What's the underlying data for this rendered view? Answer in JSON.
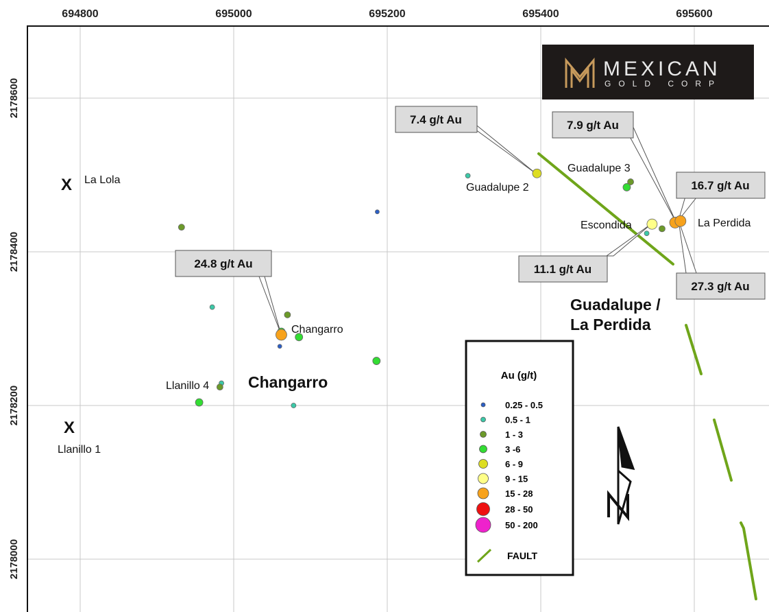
{
  "axes": {
    "x_ticks": [
      "694800",
      "695000",
      "695200",
      "695400",
      "695600"
    ],
    "y_ticks": [
      "2178600",
      "2178400",
      "2178200",
      "2178000"
    ]
  },
  "logo": {
    "word1": "MEXICAN",
    "word2": "GOLD CORP",
    "bg": "#1e1a19",
    "accent": "#c79a5c"
  },
  "area_labels": [
    {
      "key": "changarro_area",
      "text": "Changarro"
    },
    {
      "key": "guadalupe_area_1",
      "text": "Guadalupe /"
    },
    {
      "key": "guadalupe_area_2",
      "text": "La Perdida"
    }
  ],
  "place_labels": [
    {
      "key": "la_lola",
      "text": "La Lola"
    },
    {
      "key": "llanillo_1",
      "text": "Llanillo 1"
    },
    {
      "key": "llanillo_4",
      "text": "Llanillo 4"
    },
    {
      "key": "changarro",
      "text": "Changarro"
    },
    {
      "key": "guadalupe_2",
      "text": "Guadalupe 2"
    },
    {
      "key": "guadalupe_3",
      "text": "Guadalupe 3"
    },
    {
      "key": "escondida",
      "text": "Escondida"
    },
    {
      "key": "la_perdida",
      "text": "La Perdida"
    }
  ],
  "historic_markers": [
    "X",
    "X"
  ],
  "callouts": [
    {
      "key": "c248",
      "text": "24.8 g/t Au"
    },
    {
      "key": "c74",
      "text": "7.4 g/t Au"
    },
    {
      "key": "c79",
      "text": "7.9 g/t Au"
    },
    {
      "key": "c167",
      "text": "16.7 g/t Au"
    },
    {
      "key": "c111",
      "text": "11.1 g/t Au"
    },
    {
      "key": "c273",
      "text": "27.3 g/t Au"
    }
  ],
  "legend": {
    "title": "Au (g/t)",
    "items": [
      {
        "label": "0.25 - 0.5",
        "color": "#2b5fc7"
      },
      {
        "label": "0.5 - 1",
        "color": "#3cc9a8"
      },
      {
        "label": "1 - 3",
        "color": "#6c9a2a"
      },
      {
        "label": "3 -6",
        "color": "#33dd33"
      },
      {
        "label": "6 - 9",
        "color": "#dddd22"
      },
      {
        "label": "9 - 15",
        "color": "#ffff88"
      },
      {
        "label": "15 - 28",
        "color": "#f7a21c"
      },
      {
        "label": "28 - 50",
        "color": "#ee1111"
      },
      {
        "label": "50 - 200",
        "color": "#ee22cc"
      }
    ],
    "fault_label": "FAULT",
    "fault_color": "#6fa51a"
  },
  "samples": [
    {
      "x": 694932,
      "y": 2178432,
      "cls": "1 - 3"
    },
    {
      "x": 694972,
      "y": 2178328,
      "cls": "0.5 - 1"
    },
    {
      "x": 695070,
      "y": 2178318,
      "cls": "1 - 3"
    },
    {
      "x": 695062,
      "y": 2178296,
      "cls": "3 -6"
    },
    {
      "x": 695062,
      "y": 2178292,
      "cls": "15 - 28"
    },
    {
      "x": 695085,
      "y": 2178289,
      "cls": "3 -6"
    },
    {
      "x": 695060,
      "y": 2178277,
      "cls": "0.25 - 0.5"
    },
    {
      "x": 695186,
      "y": 2178258,
      "cls": "3 -6"
    },
    {
      "x": 694984,
      "y": 2178229,
      "cls": "0.5 - 1"
    },
    {
      "x": 694982,
      "y": 2178224,
      "cls": "1 - 3"
    },
    {
      "x": 694955,
      "y": 2178204,
      "cls": "3 -6"
    },
    {
      "x": 695078,
      "y": 2178200,
      "cls": "0.5 - 1"
    },
    {
      "x": 695187,
      "y": 2178452,
      "cls": "0.25 - 0.5"
    },
    {
      "x": 695305,
      "y": 2178499,
      "cls": "0.5 - 1"
    },
    {
      "x": 695395,
      "y": 2178502,
      "cls": "6 - 9"
    },
    {
      "x": 695517,
      "y": 2178491,
      "cls": "1 - 3"
    },
    {
      "x": 695512,
      "y": 2178484,
      "cls": "3 -6"
    },
    {
      "x": 695545,
      "y": 2178436,
      "cls": "9 - 15"
    },
    {
      "x": 695538,
      "y": 2178424,
      "cls": "0.5 - 1"
    },
    {
      "x": 695558,
      "y": 2178430,
      "cls": "1 - 3"
    },
    {
      "x": 695575,
      "y": 2178438,
      "cls": "15 - 28"
    },
    {
      "x": 695582,
      "y": 2178440,
      "cls": "15 - 28"
    }
  ]
}
